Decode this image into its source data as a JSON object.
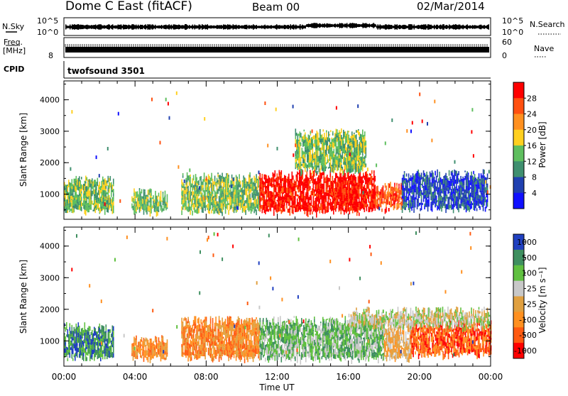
{
  "header": {
    "station": "Dome C East (fitACF)",
    "beam": "Beam 00",
    "date": "02/Mar/2014"
  },
  "top_panels": {
    "nsky": {
      "left_label": "N.Sky",
      "left_ticks": [
        "10^5",
        "10^0"
      ],
      "right_ticks": [
        "10^5",
        "10^0"
      ],
      "right_label": "N.Search"
    },
    "freq": {
      "left_label_1": "Freq.",
      "left_label_2": "[MHz]",
      "left_tick": "8",
      "right_ticks": [
        "60",
        "0"
      ],
      "right_label": "Nave"
    },
    "cpid": {
      "left_label": "CPID",
      "value": "twofsound 3501"
    }
  },
  "colors": {
    "power_scale": [
      "#1010ff",
      "#2040b0",
      "#3f8f6f",
      "#5fbf5f",
      "#ffd020",
      "#ff9020",
      "#ff5010",
      "#ff0000"
    ],
    "velocity_scale": [
      "#ff0000",
      "#ff5a10",
      "#ff9020",
      "#e0a040",
      "#c8c8c8",
      "#60c040",
      "#3f8f60",
      "#2040c0"
    ]
  },
  "chart_data": [
    {
      "type": "heatmap",
      "title": "",
      "ylabel": "Slant Range [km]",
      "xlabel": "",
      "ylim": [
        200,
        4600
      ],
      "yticks": [
        "1000",
        "2000",
        "3000",
        "4000"
      ],
      "ytick_values": [
        1000,
        2000,
        3000,
        4000
      ],
      "x_ticks_hours": [
        0,
        4,
        8,
        12,
        16,
        20,
        24
      ],
      "colorbar": {
        "label": "Power [dB]",
        "ticks": [
          "4",
          "8",
          "12",
          "16",
          "20",
          "24",
          "28"
        ]
      },
      "approx_features": [
        {
          "start_h": 0.0,
          "end_h": 2.8,
          "range_min_km": 500,
          "range_max_km": 1500,
          "level": 3
        },
        {
          "start_h": 3.8,
          "end_h": 5.8,
          "range_min_km": 500,
          "range_max_km": 1100,
          "level": 3
        },
        {
          "start_h": 6.6,
          "end_h": 11.0,
          "range_min_km": 500,
          "range_max_km": 1600,
          "level": 3
        },
        {
          "start_h": 11.0,
          "end_h": 17.5,
          "range_min_km": 500,
          "range_max_km": 1700,
          "level": 7
        },
        {
          "start_h": 17.5,
          "end_h": 19.0,
          "range_min_km": 600,
          "range_max_km": 1300,
          "level": 6
        },
        {
          "start_h": 19.0,
          "end_h": 23.8,
          "range_min_km": 600,
          "range_max_km": 1700,
          "level": 1
        },
        {
          "start_h": 13.0,
          "end_h": 17.0,
          "range_min_km": 1800,
          "range_max_km": 3000,
          "level": 3
        }
      ]
    },
    {
      "type": "heatmap",
      "title": "",
      "ylabel": "Slant Range [km]",
      "xlabel": "Time UT",
      "ylim": [
        200,
        4600
      ],
      "yticks": [
        "1000",
        "2000",
        "3000",
        "4000"
      ],
      "ytick_values": [
        1000,
        2000,
        3000,
        4000
      ],
      "x_ticks_hours": [
        0,
        4,
        8,
        12,
        16,
        20,
        24
      ],
      "xticks": [
        "00:00",
        "04:00",
        "08:00",
        "12:00",
        "16:00",
        "20:00",
        "00:00"
      ],
      "colorbar": {
        "label": "Velocity [m s⁻¹]",
        "ticks": [
          "1000",
          "500",
          "100",
          "25",
          "-25",
          "-100",
          "-500",
          "-1000"
        ]
      },
      "approx_features": [
        {
          "start_h": 0.0,
          "end_h": 2.8,
          "range_min_km": 500,
          "range_max_km": 1500,
          "level": 6
        },
        {
          "start_h": 3.8,
          "end_h": 5.8,
          "range_min_km": 500,
          "range_max_km": 1100,
          "level": 2
        },
        {
          "start_h": 6.6,
          "end_h": 11.0,
          "range_min_km": 500,
          "range_max_km": 1700,
          "level": 2
        },
        {
          "start_h": 11.0,
          "end_h": 18.0,
          "range_min_km": 500,
          "range_max_km": 1700,
          "level": 5
        },
        {
          "start_h": 18.0,
          "end_h": 19.5,
          "range_min_km": 500,
          "range_max_km": 1500,
          "level": 3
        },
        {
          "start_h": 19.5,
          "end_h": 24.0,
          "range_min_km": 600,
          "range_max_km": 1600,
          "level": 1
        },
        {
          "start_h": 16.0,
          "end_h": 24.0,
          "range_min_km": 1500,
          "range_max_km": 2000,
          "level": 4
        }
      ]
    }
  ]
}
